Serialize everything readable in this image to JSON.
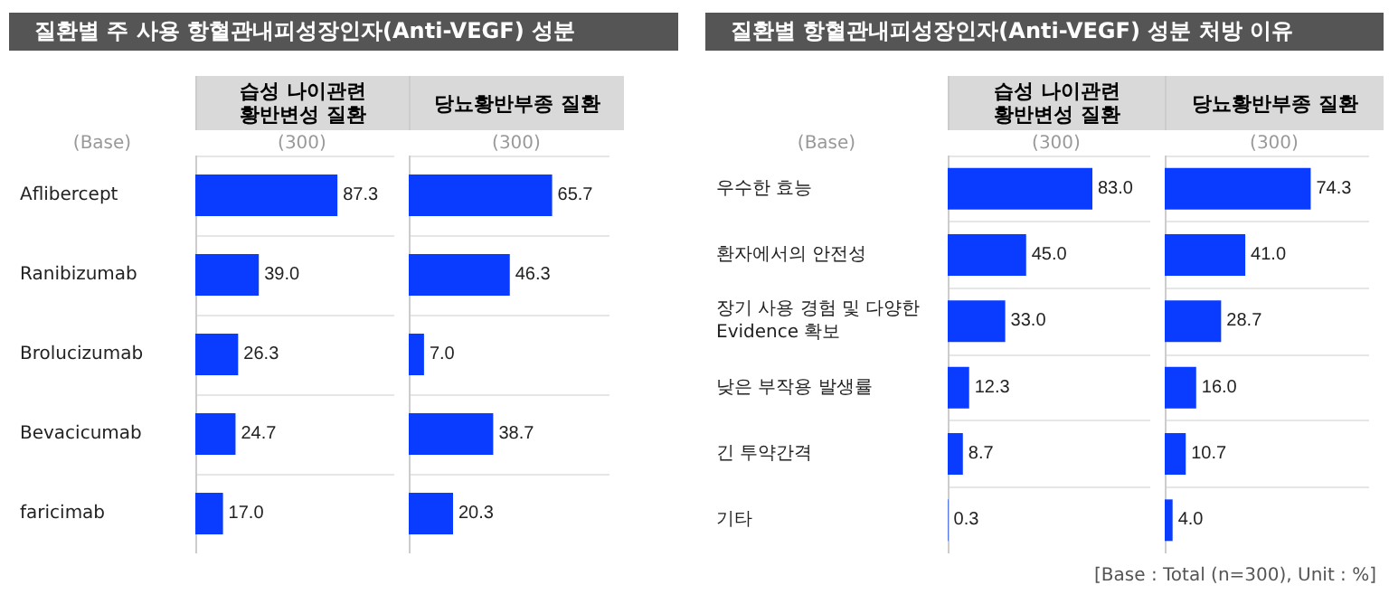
{
  "chart_data": [
    {
      "type": "bar",
      "orientation": "horizontal",
      "title": "질환별 주 사용 항혈관내피성장인자(Anti-VEGF) 성분",
      "grid": "y",
      "tick_labels": "y",
      "categories": [
        "Aflibercept",
        "Ranibizumab",
        "Brolucizumab",
        "Bevacicumab",
        "faricimab"
      ],
      "annotations": [
        "(Base)",
        "(300)"
      ],
      "series": [
        {
          "name": "습성 나이관련\n황반변성 질환",
          "color": "#0a3cff",
          "values": [
            87.3,
            39.0,
            26.3,
            24.7,
            17.0
          ],
          "value_labels": [
            "87.3",
            "39.0",
            "26.3",
            "24.7",
            "17.0"
          ]
        }
      ]
    },
    {
      "type": "bar",
      "orientation": "horizontal",
      "grid": "y",
      "tick_labels": false,
      "categories": [
        "Aflibercept",
        "Ranibizumab",
        "Brolucizumab",
        "Bevacicumab",
        "faricimab"
      ],
      "annotations": [
        "(300)"
      ],
      "series": [
        {
          "name": "당뇨황반부종 질환",
          "color": "#0a3cff",
          "values": [
            65.7,
            46.3,
            7.0,
            38.7,
            20.3
          ],
          "value_labels": [
            "65.7",
            "46.3",
            "7.0",
            "38.7",
            "20.3"
          ]
        }
      ]
    },
    {
      "type": "bar",
      "orientation": "horizontal",
      "title": "질환별 항혈관내피성장인자(Anti-VEGF) 성분 처방 이유",
      "grid": "y",
      "tick_labels": "y",
      "categories": [
        "우수한 효능",
        "환자에서의 안전성",
        "장기 사용 경험 및 다양한 Evidence 확보",
        "낮은 부작용 발생률",
        "긴 투약간격",
        "기타"
      ],
      "annotations": [
        "(Base)",
        "(300)"
      ],
      "series": [
        {
          "name": "습성 나이관련\n황반변성 질환",
          "color": "#0a3cff",
          "values": [
            83.0,
            45.0,
            33.0,
            12.3,
            8.7,
            0.3
          ],
          "value_labels": [
            "83.0",
            "45.0",
            "33.0",
            "12.3",
            "8.7",
            "0.3"
          ]
        }
      ]
    },
    {
      "type": "bar",
      "orientation": "horizontal",
      "grid": "y",
      "tick_labels": false,
      "categories": [
        "우수한 효능",
        "환자에서의 안전성",
        "장기 사용 경험 및 다양한 Evidence 확보",
        "낮은 부작용 발생률",
        "긴 투약간격",
        "기타"
      ],
      "annotations": [
        "(300)",
        "[Base : Total (n=300), Unit : %]"
      ],
      "series": [
        {
          "name": "당뇨황반부종 질환",
          "color": "#0a3cff",
          "values": [
            74.3,
            41.0,
            28.7,
            16.0,
            10.7,
            4.0
          ],
          "value_labels": [
            "74.3",
            "41.0",
            "28.7",
            "16.0",
            "10.7",
            "4.0"
          ]
        }
      ]
    }
  ]
}
